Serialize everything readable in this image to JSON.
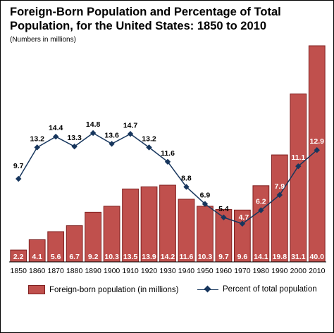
{
  "title": "Foreign-Born Population and Percentage of Total Population, for the United States: 1850 to 2010",
  "subtitle": "(Numbers in millions)",
  "colors": {
    "bar": "#c0504d",
    "bar_stroke": "#7f1f1f",
    "line": "#17365d"
  },
  "legend": {
    "bar_label": "Foreign-born population (in millions)",
    "line_label": "Percent of total population"
  },
  "chart_data": {
    "type": "bar",
    "categories": [
      "1850",
      "1860",
      "1870",
      "1880",
      "1890",
      "1900",
      "1910",
      "1920",
      "1930",
      "1940",
      "1950",
      "1960",
      "1970",
      "1980",
      "1990",
      "2000",
      "2010"
    ],
    "series": [
      {
        "name": "Foreign-born population (in millions)",
        "type": "bar",
        "values": [
          2.2,
          4.1,
          5.6,
          6.7,
          9.2,
          10.3,
          13.5,
          13.9,
          14.2,
          11.6,
          10.3,
          9.7,
          9.6,
          14.1,
          19.8,
          31.1,
          40.0
        ],
        "labels": [
          "2.2",
          "4.1",
          "5.6",
          "6.7",
          "9.2",
          "10.3",
          "13.5",
          "13.9",
          "14.2",
          "11.6",
          "10.3",
          "9.7",
          "9.6",
          "14.1",
          "19.8",
          "31.1",
          "40.0"
        ]
      },
      {
        "name": "Percent of total population",
        "type": "line",
        "values": [
          9.7,
          13.2,
          14.4,
          13.3,
          14.8,
          13.6,
          14.7,
          13.2,
          11.6,
          8.8,
          6.9,
          5.4,
          4.7,
          6.2,
          7.9,
          11.1,
          12.9
        ],
        "labels": [
          "9.7",
          "13.2",
          "14.4",
          "13.3",
          "14.8",
          "13.6",
          "14.7",
          "13.2",
          "11.6",
          "8.8",
          "6.9",
          "5.4",
          "4.7",
          "6.2",
          "7.9",
          "11.1",
          "12.9"
        ]
      }
    ],
    "legend_position": "bottom",
    "grid": false
  }
}
